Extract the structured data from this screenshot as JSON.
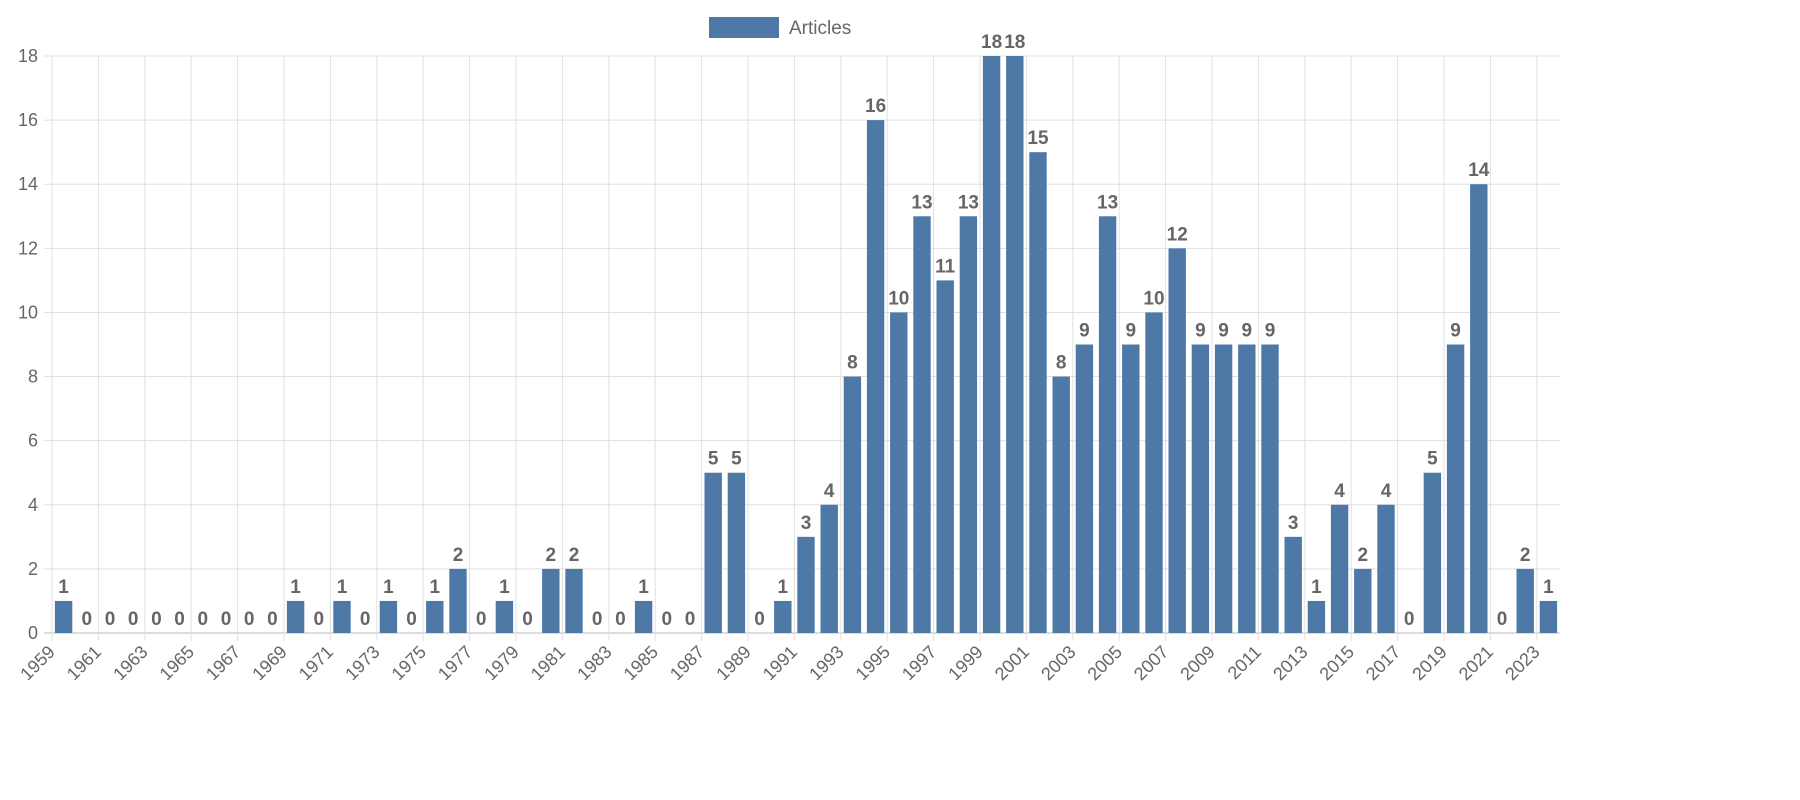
{
  "chart_data": {
    "type": "bar",
    "title": "",
    "xlabel": "",
    "ylabel": "",
    "ylim": [
      0,
      18
    ],
    "ytick_step": 2,
    "grid": true,
    "legend": {
      "placement": "top-center",
      "entries": [
        "Articles"
      ]
    },
    "bar_color": "#4e79a7",
    "categories": [
      "1959",
      "1960",
      "1961",
      "1962",
      "1963",
      "1964",
      "1965",
      "1966",
      "1967",
      "1968",
      "1969",
      "1970",
      "1971",
      "1972",
      "1973",
      "1974",
      "1975",
      "1976",
      "1977",
      "1978",
      "1979",
      "1980",
      "1981",
      "1982",
      "1983",
      "1984",
      "1985",
      "1986",
      "1987",
      "1988",
      "1989",
      "1990",
      "1991",
      "1992",
      "1993",
      "1994",
      "1995",
      "1996",
      "1997",
      "1998",
      "1999",
      "2000",
      "2001",
      "2002",
      "2003",
      "2004",
      "2005",
      "2006",
      "2007",
      "2008",
      "2009",
      "2010",
      "2011",
      "2012",
      "2013",
      "2014",
      "2015",
      "2016",
      "2017",
      "2018",
      "2019",
      "2020",
      "2021",
      "2022",
      "2023"
    ],
    "series": [
      {
        "name": "Articles",
        "values": [
          1,
          0,
          0,
          0,
          0,
          0,
          0,
          0,
          0,
          0,
          1,
          0,
          1,
          0,
          1,
          0,
          1,
          2,
          0,
          1,
          0,
          2,
          2,
          0,
          0,
          1,
          0,
          0,
          5,
          5,
          0,
          1,
          3,
          4,
          8,
          16,
          10,
          13,
          11,
          13,
          18,
          18,
          15,
          8,
          9,
          13,
          9,
          10,
          12,
          9,
          9,
          9,
          9,
          3,
          1,
          4,
          2,
          4,
          0,
          5,
          9,
          14,
          0,
          2,
          1
        ]
      }
    ]
  }
}
